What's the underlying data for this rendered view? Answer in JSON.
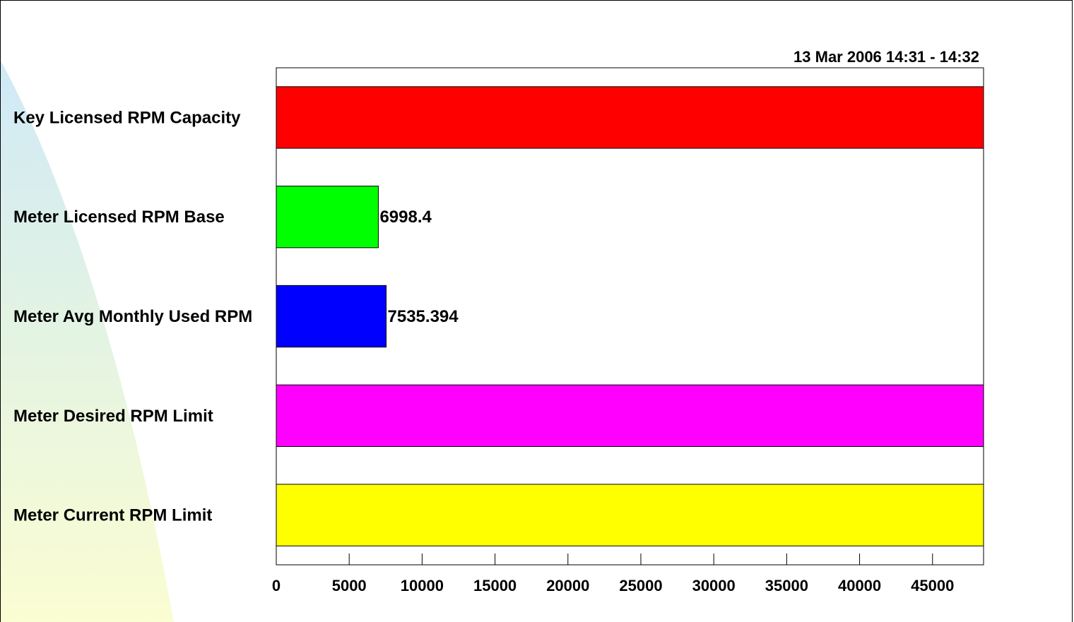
{
  "time_range": "13 Mar 2006 14:31 - 14:32",
  "chart_data": {
    "type": "bar",
    "orientation": "horizontal",
    "title": "",
    "xlabel": "",
    "ylabel": "",
    "xlim": [
      0,
      48500
    ],
    "grid": false,
    "legend": "none",
    "categories": [
      "Key Licensed RPM Capacity",
      "Meter Licensed RPM Base",
      "Meter Avg Monthly Used RPM",
      "Meter Desired RPM Limit",
      "Meter Current RPM Limit"
    ],
    "values": [
      48500,
      6998.4,
      7535.394,
      48500,
      48500
    ],
    "data_labels": [
      "",
      "6998.4",
      "7535.394",
      "",
      ""
    ],
    "colors": [
      "#ff0000",
      "#00ff00",
      "#0000ff",
      "#ff00ff",
      "#ffff00"
    ],
    "x_ticks": [
      0,
      5000,
      10000,
      15000,
      20000,
      25000,
      30000,
      35000,
      40000,
      45000
    ],
    "x_tick_labels": [
      "0",
      "5000",
      "10000",
      "15000",
      "20000",
      "25000",
      "30000",
      "35000",
      "40000",
      "45000"
    ]
  }
}
